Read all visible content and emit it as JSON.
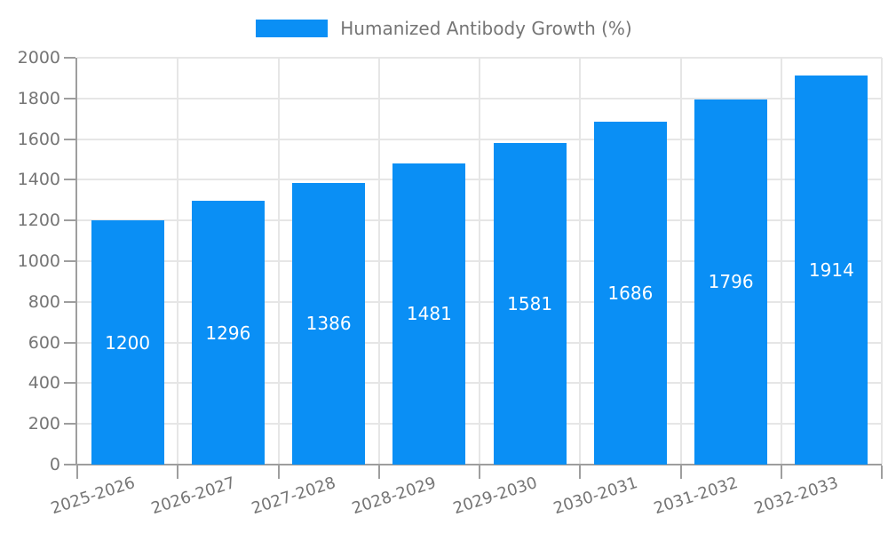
{
  "chart_data": {
    "type": "bar",
    "title": "Humanized Antibody Growth (%)",
    "legend": {
      "label": "Humanized Antibody Growth (%)",
      "position": "top-center"
    },
    "categories": [
      "2025-2026",
      "2026-2027",
      "2027-2028",
      "2028-2029",
      "2029-2030",
      "2030-2031",
      "2031-2032",
      "2032-2033"
    ],
    "series": [
      {
        "name": "Humanized Antibody Growth (%)",
        "values": [
          1200,
          1296,
          1386,
          1481,
          1581,
          1686,
          1796,
          1914
        ]
      }
    ],
    "xlabel": "",
    "ylabel": "",
    "ylim": [
      0,
      2000
    ],
    "yticks": [
      0,
      200,
      400,
      600,
      800,
      1000,
      1200,
      1400,
      1600,
      1800,
      2000
    ],
    "grid": true,
    "value_labels": "inside-center-white",
    "colors": {
      "bar": "#0a8ff5",
      "value_label": "#ffffff",
      "axis": "#9e9e9e",
      "grid": "#e6e6e6",
      "tick_label": "#757575"
    }
  }
}
